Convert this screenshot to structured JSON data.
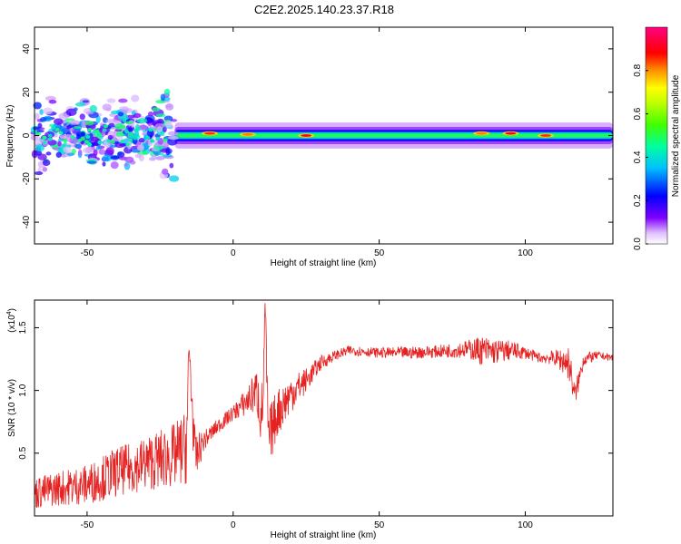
{
  "figure": {
    "title": "C2E2.2025.140.23.37.R18"
  },
  "colors": {
    "snr_line": "#e52222",
    "axes": "#000000",
    "background": "#ffffff"
  },
  "chart_data": [
    {
      "type": "heatmap",
      "xlabel": "Height of straight line (km)",
      "ylabel": "Frequency (Hz)",
      "xlim": [
        -68,
        130
      ],
      "ylim": [
        -50,
        50
      ],
      "xticks": [
        -50,
        0,
        50,
        100
      ],
      "yticks": [
        -40,
        -20,
        0,
        20,
        40
      ],
      "colorbar": {
        "label": "Normalized spectral amplitude",
        "range": [
          0,
          1
        ],
        "ticks": [
          "0.0",
          "0.2",
          "0.4",
          "0.6",
          "0.8"
        ],
        "colormap": "rainbow"
      },
      "regions": [
        {
          "x_range": [
            -68,
            -20
          ],
          "freq_center": 0,
          "freq_spread": 15,
          "amplitude_range": [
            0.05,
            0.5
          ],
          "pattern": "scattered"
        },
        {
          "x_range": [
            -20,
            130
          ],
          "freq_center": 0,
          "freq_spread": 3,
          "amplitude_range": [
            0.4,
            1.0
          ],
          "pattern": "continuous band"
        }
      ],
      "peaks": [
        {
          "x": -8,
          "freq": 1,
          "amplitude": 0.95
        },
        {
          "x": 5,
          "freq": 0.5,
          "amplitude": 0.9
        },
        {
          "x": 25,
          "freq": 0,
          "amplitude": 1.0
        },
        {
          "x": 85,
          "freq": 1,
          "amplitude": 0.9
        },
        {
          "x": 95,
          "freq": 1,
          "amplitude": 1.0
        },
        {
          "x": 107,
          "freq": 0,
          "amplitude": 0.95
        }
      ]
    },
    {
      "type": "line",
      "xlabel": "Height of straight line (km)",
      "ylabel": "SNR (10 * v/v)",
      "yscale_label": "(x10",
      "yscale_exp": "4",
      "yscale_suffix": ")",
      "xlim": [
        -68,
        130
      ],
      "ylim": [
        0,
        1.72
      ],
      "xticks": [
        -50,
        0,
        50,
        100
      ],
      "yticks": [
        "0.5",
        "1.0",
        "1.5"
      ],
      "series": [
        {
          "x": [
            -68,
            -60,
            -50,
            -45,
            -40,
            -35,
            -30,
            -25,
            -20,
            -16,
            -15,
            -13,
            -10,
            -5,
            0,
            5,
            8,
            10,
            11,
            12,
            15,
            20,
            25,
            30,
            35,
            40,
            50,
            60,
            70,
            80,
            85,
            90,
            95,
            100,
            105,
            110,
            115,
            117,
            120,
            125,
            130
          ],
          "y": [
            0.18,
            0.22,
            0.25,
            0.3,
            0.35,
            0.38,
            0.42,
            0.45,
            0.48,
            0.55,
            1.3,
            0.45,
            0.6,
            0.72,
            0.82,
            0.92,
            1.0,
            0.78,
            1.68,
            0.6,
            0.82,
            0.98,
            1.08,
            1.22,
            1.28,
            1.32,
            1.3,
            1.3,
            1.31,
            1.33,
            1.32,
            1.31,
            1.32,
            1.3,
            1.26,
            1.26,
            1.22,
            0.95,
            1.25,
            1.28,
            1.26
          ],
          "noise": [
            0.13,
            0.14,
            0.16,
            0.18,
            0.2,
            0.2,
            0.22,
            0.24,
            0.26,
            0.3,
            0.3,
            0.2,
            0.08,
            0.06,
            0.06,
            0.12,
            0.18,
            0.3,
            0.1,
            0.25,
            0.2,
            0.15,
            0.1,
            0.06,
            0.04,
            0.04,
            0.04,
            0.05,
            0.05,
            0.07,
            0.12,
            0.1,
            0.08,
            0.05,
            0.04,
            0.06,
            0.14,
            0.1,
            0.06,
            0.03,
            0.03
          ]
        }
      ]
    }
  ]
}
